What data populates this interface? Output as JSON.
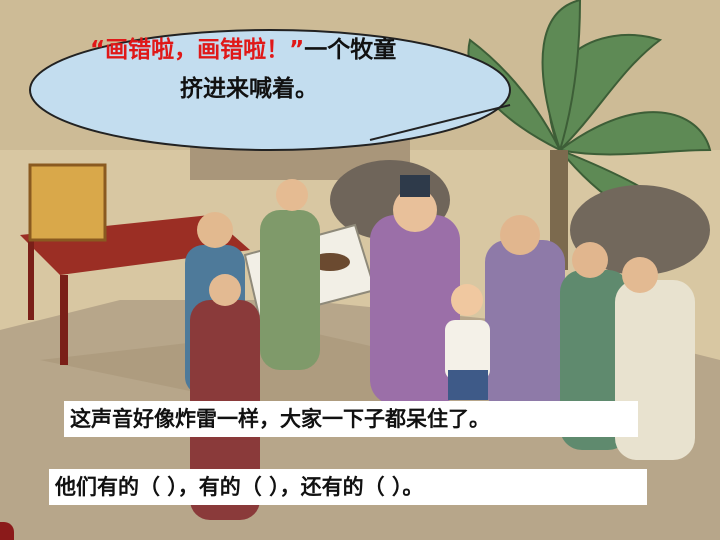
{
  "bubble": {
    "quote_open": "“",
    "red_text": "画错啦，画错啦！”",
    "line1_rest": "一个牧童",
    "line2": "挤进来喊着。"
  },
  "captions": {
    "sentence": "这声音好像炸雷一样，大家一下子都呆住了。",
    "exercise": "他们有的（  ），有的（  ），还有的（  ）。"
  },
  "colors": {
    "highlight_red": "#e01818",
    "caption_bg": "#ffffff"
  }
}
